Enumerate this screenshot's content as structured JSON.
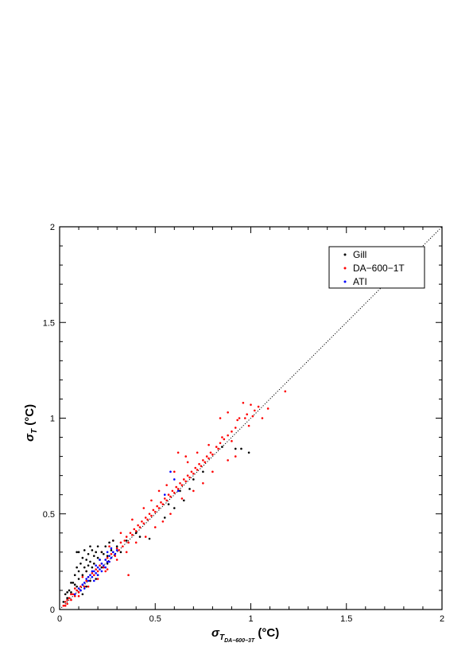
{
  "chart_data": {
    "type": "scatter",
    "title": "",
    "xlabel": {
      "symbol": "σ",
      "sub1": "T",
      "sub2": "DA−600−3T",
      "unit": "(°C)"
    },
    "ylabel": {
      "symbol": "σ",
      "sub": "T",
      "unit": "(°C)"
    },
    "xlim": [
      0,
      2
    ],
    "ylim": [
      0,
      2
    ],
    "xticks": [
      0,
      0.5,
      1,
      1.5,
      2
    ],
    "yticks": [
      0,
      0.5,
      1,
      1.5,
      2
    ],
    "xtick_labels": [
      "0",
      "0.5",
      "1",
      "1.5",
      "2"
    ],
    "ytick_labels": [
      "0",
      "0.5",
      "1",
      "1.5",
      "2"
    ],
    "grid": false,
    "legend_position": "top-right",
    "reference_line": {
      "type": "1:1 dotted",
      "points": [
        [
          0,
          0
        ],
        [
          2,
          2
        ]
      ]
    },
    "series": [
      {
        "name": "Gill",
        "color": "#000000",
        "points": [
          [
            0.02,
            0.04
          ],
          [
            0.03,
            0.08
          ],
          [
            0.04,
            0.06
          ],
          [
            0.05,
            0.1
          ],
          [
            0.06,
            0.09
          ],
          [
            0.07,
            0.14
          ],
          [
            0.08,
            0.13
          ],
          [
            0.08,
            0.18
          ],
          [
            0.09,
            0.12
          ],
          [
            0.1,
            0.2
          ],
          [
            0.1,
            0.16
          ],
          [
            0.11,
            0.24
          ],
          [
            0.12,
            0.18
          ],
          [
            0.12,
            0.27
          ],
          [
            0.13,
            0.22
          ],
          [
            0.13,
            0.31
          ],
          [
            0.14,
            0.2
          ],
          [
            0.14,
            0.26
          ],
          [
            0.15,
            0.29
          ],
          [
            0.15,
            0.23
          ],
          [
            0.16,
            0.25
          ],
          [
            0.17,
            0.31
          ],
          [
            0.17,
            0.22
          ],
          [
            0.18,
            0.28
          ],
          [
            0.18,
            0.24
          ],
          [
            0.19,
            0.3
          ],
          [
            0.2,
            0.27
          ],
          [
            0.2,
            0.33
          ],
          [
            0.21,
            0.26
          ],
          [
            0.22,
            0.3
          ],
          [
            0.23,
            0.29
          ],
          [
            0.24,
            0.33
          ],
          [
            0.25,
            0.28
          ],
          [
            0.26,
            0.35
          ],
          [
            0.27,
            0.31
          ],
          [
            0.28,
            0.36
          ],
          [
            0.3,
            0.33
          ],
          [
            0.32,
            0.3
          ],
          [
            0.1,
            0.3
          ],
          [
            0.09,
            0.22
          ],
          [
            0.11,
            0.1
          ],
          [
            0.14,
            0.12
          ],
          [
            0.16,
            0.15
          ],
          [
            0.2,
            0.18
          ],
          [
            0.22,
            0.22
          ],
          [
            0.25,
            0.24
          ],
          [
            0.19,
            0.16
          ],
          [
            0.12,
            0.08
          ],
          [
            0.09,
            0.3
          ],
          [
            0.16,
            0.33
          ],
          [
            0.06,
            0.14
          ],
          [
            0.04,
            0.09
          ],
          [
            0.35,
            0.36
          ],
          [
            0.4,
            0.4
          ],
          [
            0.42,
            0.38
          ],
          [
            0.47,
            0.37
          ],
          [
            0.55,
            0.48
          ],
          [
            0.6,
            0.53
          ],
          [
            0.65,
            0.57
          ],
          [
            0.68,
            0.63
          ],
          [
            0.7,
            0.68
          ],
          [
            0.75,
            0.72
          ],
          [
            0.85,
            0.85
          ],
          [
            0.92,
            0.84
          ],
          [
            0.95,
            0.84
          ],
          [
            0.99,
            0.82
          ],
          [
            0.63,
            0.62
          ],
          [
            0.57,
            0.55
          ]
        ]
      },
      {
        "name": "DA−600−1T",
        "color": "#ff0000",
        "points": [
          [
            0.02,
            0.02
          ],
          [
            0.03,
            0.04
          ],
          [
            0.04,
            0.03
          ],
          [
            0.05,
            0.06
          ],
          [
            0.06,
            0.05
          ],
          [
            0.07,
            0.08
          ],
          [
            0.08,
            0.07
          ],
          [
            0.09,
            0.1
          ],
          [
            0.1,
            0.09
          ],
          [
            0.11,
            0.12
          ],
          [
            0.12,
            0.13
          ],
          [
            0.13,
            0.12
          ],
          [
            0.14,
            0.15
          ],
          [
            0.15,
            0.17
          ],
          [
            0.16,
            0.15
          ],
          [
            0.17,
            0.19
          ],
          [
            0.18,
            0.18
          ],
          [
            0.19,
            0.21
          ],
          [
            0.2,
            0.2
          ],
          [
            0.21,
            0.23
          ],
          [
            0.22,
            0.24
          ],
          [
            0.23,
            0.22
          ],
          [
            0.24,
            0.26
          ],
          [
            0.25,
            0.27
          ],
          [
            0.26,
            0.25
          ],
          [
            0.27,
            0.29
          ],
          [
            0.28,
            0.3
          ],
          [
            0.29,
            0.28
          ],
          [
            0.3,
            0.32
          ],
          [
            0.31,
            0.31
          ],
          [
            0.32,
            0.35
          ],
          [
            0.33,
            0.33
          ],
          [
            0.34,
            0.36
          ],
          [
            0.35,
            0.38
          ],
          [
            0.36,
            0.35
          ],
          [
            0.37,
            0.4
          ],
          [
            0.38,
            0.39
          ],
          [
            0.39,
            0.42
          ],
          [
            0.4,
            0.41
          ],
          [
            0.41,
            0.44
          ],
          [
            0.42,
            0.43
          ],
          [
            0.43,
            0.46
          ],
          [
            0.44,
            0.45
          ],
          [
            0.45,
            0.48
          ],
          [
            0.46,
            0.47
          ],
          [
            0.47,
            0.5
          ],
          [
            0.48,
            0.49
          ],
          [
            0.49,
            0.52
          ],
          [
            0.5,
            0.51
          ],
          [
            0.51,
            0.54
          ],
          [
            0.52,
            0.53
          ],
          [
            0.53,
            0.56
          ],
          [
            0.54,
            0.55
          ],
          [
            0.55,
            0.58
          ],
          [
            0.56,
            0.57
          ],
          [
            0.57,
            0.6
          ],
          [
            0.58,
            0.59
          ],
          [
            0.59,
            0.62
          ],
          [
            0.6,
            0.61
          ],
          [
            0.61,
            0.64
          ],
          [
            0.62,
            0.63
          ],
          [
            0.63,
            0.66
          ],
          [
            0.64,
            0.65
          ],
          [
            0.65,
            0.68
          ],
          [
            0.66,
            0.67
          ],
          [
            0.67,
            0.7
          ],
          [
            0.68,
            0.69
          ],
          [
            0.69,
            0.72
          ],
          [
            0.7,
            0.71
          ],
          [
            0.71,
            0.74
          ],
          [
            0.72,
            0.73
          ],
          [
            0.73,
            0.76
          ],
          [
            0.74,
            0.75
          ],
          [
            0.75,
            0.78
          ],
          [
            0.76,
            0.77
          ],
          [
            0.77,
            0.8
          ],
          [
            0.78,
            0.79
          ],
          [
            0.79,
            0.82
          ],
          [
            0.8,
            0.81
          ],
          [
            0.82,
            0.85
          ],
          [
            0.84,
            0.87
          ],
          [
            0.86,
            0.89
          ],
          [
            0.88,
            0.91
          ],
          [
            0.9,
            0.93
          ],
          [
            0.92,
            0.95
          ],
          [
            0.94,
            1.0
          ],
          [
            0.96,
            1.08
          ],
          [
            0.98,
            1.02
          ],
          [
            1.0,
            1.07
          ],
          [
            1.02,
            1.04
          ],
          [
            1.04,
            1.06
          ],
          [
            1.06,
            1.0
          ],
          [
            1.09,
            1.05
          ],
          [
            1.18,
            1.14
          ],
          [
            0.88,
            1.03
          ],
          [
            0.84,
            1.0
          ],
          [
            0.62,
            0.82
          ],
          [
            0.6,
            0.72
          ],
          [
            0.67,
            0.77
          ],
          [
            0.7,
            0.62
          ],
          [
            0.75,
            0.66
          ],
          [
            0.8,
            0.72
          ],
          [
            0.88,
            0.78
          ],
          [
            0.92,
            0.8
          ],
          [
            0.5,
            0.43
          ],
          [
            0.45,
            0.38
          ],
          [
            0.4,
            0.35
          ],
          [
            0.35,
            0.3
          ],
          [
            0.3,
            0.26
          ],
          [
            0.25,
            0.21
          ],
          [
            0.2,
            0.16
          ],
          [
            0.15,
            0.12
          ],
          [
            0.1,
            0.07
          ],
          [
            0.36,
            0.18
          ],
          [
            0.44,
            0.53
          ],
          [
            0.38,
            0.47
          ],
          [
            0.32,
            0.4
          ],
          [
            0.28,
            0.36
          ],
          [
            0.22,
            0.3
          ],
          [
            0.18,
            0.24
          ],
          [
            0.52,
            0.62
          ],
          [
            0.56,
            0.65
          ],
          [
            0.48,
            0.57
          ],
          [
            0.66,
            0.8
          ],
          [
            0.72,
            0.82
          ],
          [
            0.78,
            0.86
          ],
          [
            0.58,
            0.5
          ],
          [
            0.54,
            0.46
          ],
          [
            0.64,
            0.58
          ],
          [
            0.85,
            0.9
          ],
          [
            0.9,
            0.88
          ],
          [
            0.83,
            0.84
          ],
          [
            0.97,
            1.0
          ],
          [
            0.93,
            0.99
          ],
          [
            1.01,
            1.01
          ],
          [
            0.99,
            0.96
          ],
          [
            0.26,
            0.33
          ],
          [
            0.24,
            0.2
          ],
          [
            0.14,
            0.2
          ],
          [
            0.12,
            0.17
          ],
          [
            0.08,
            0.11
          ],
          [
            0.06,
            0.08
          ],
          [
            0.04,
            0.05
          ],
          [
            0.03,
            0.02
          ]
        ]
      },
      {
        "name": "ATI",
        "color": "#0000ff",
        "points": [
          [
            0.08,
            0.08
          ],
          [
            0.1,
            0.11
          ],
          [
            0.12,
            0.13
          ],
          [
            0.13,
            0.14
          ],
          [
            0.14,
            0.16
          ],
          [
            0.15,
            0.15
          ],
          [
            0.16,
            0.18
          ],
          [
            0.17,
            0.17
          ],
          [
            0.18,
            0.2
          ],
          [
            0.19,
            0.19
          ],
          [
            0.2,
            0.22
          ],
          [
            0.21,
            0.21
          ],
          [
            0.22,
            0.24
          ],
          [
            0.23,
            0.23
          ],
          [
            0.24,
            0.26
          ],
          [
            0.25,
            0.25
          ],
          [
            0.26,
            0.28
          ],
          [
            0.27,
            0.27
          ],
          [
            0.28,
            0.3
          ],
          [
            0.29,
            0.29
          ],
          [
            0.3,
            0.31
          ],
          [
            0.18,
            0.15
          ],
          [
            0.2,
            0.18
          ],
          [
            0.22,
            0.2
          ],
          [
            0.15,
            0.17
          ],
          [
            0.13,
            0.11
          ],
          [
            0.24,
            0.22
          ],
          [
            0.26,
            0.25
          ],
          [
            0.58,
            0.72
          ],
          [
            0.6,
            0.68
          ],
          [
            0.55,
            0.6
          ],
          [
            0.62,
            0.62
          ],
          [
            0.11,
            0.1
          ],
          [
            0.17,
            0.2
          ],
          [
            0.19,
            0.23
          ],
          [
            0.21,
            0.26
          ],
          [
            0.25,
            0.3
          ],
          [
            0.27,
            0.32
          ]
        ]
      }
    ]
  }
}
